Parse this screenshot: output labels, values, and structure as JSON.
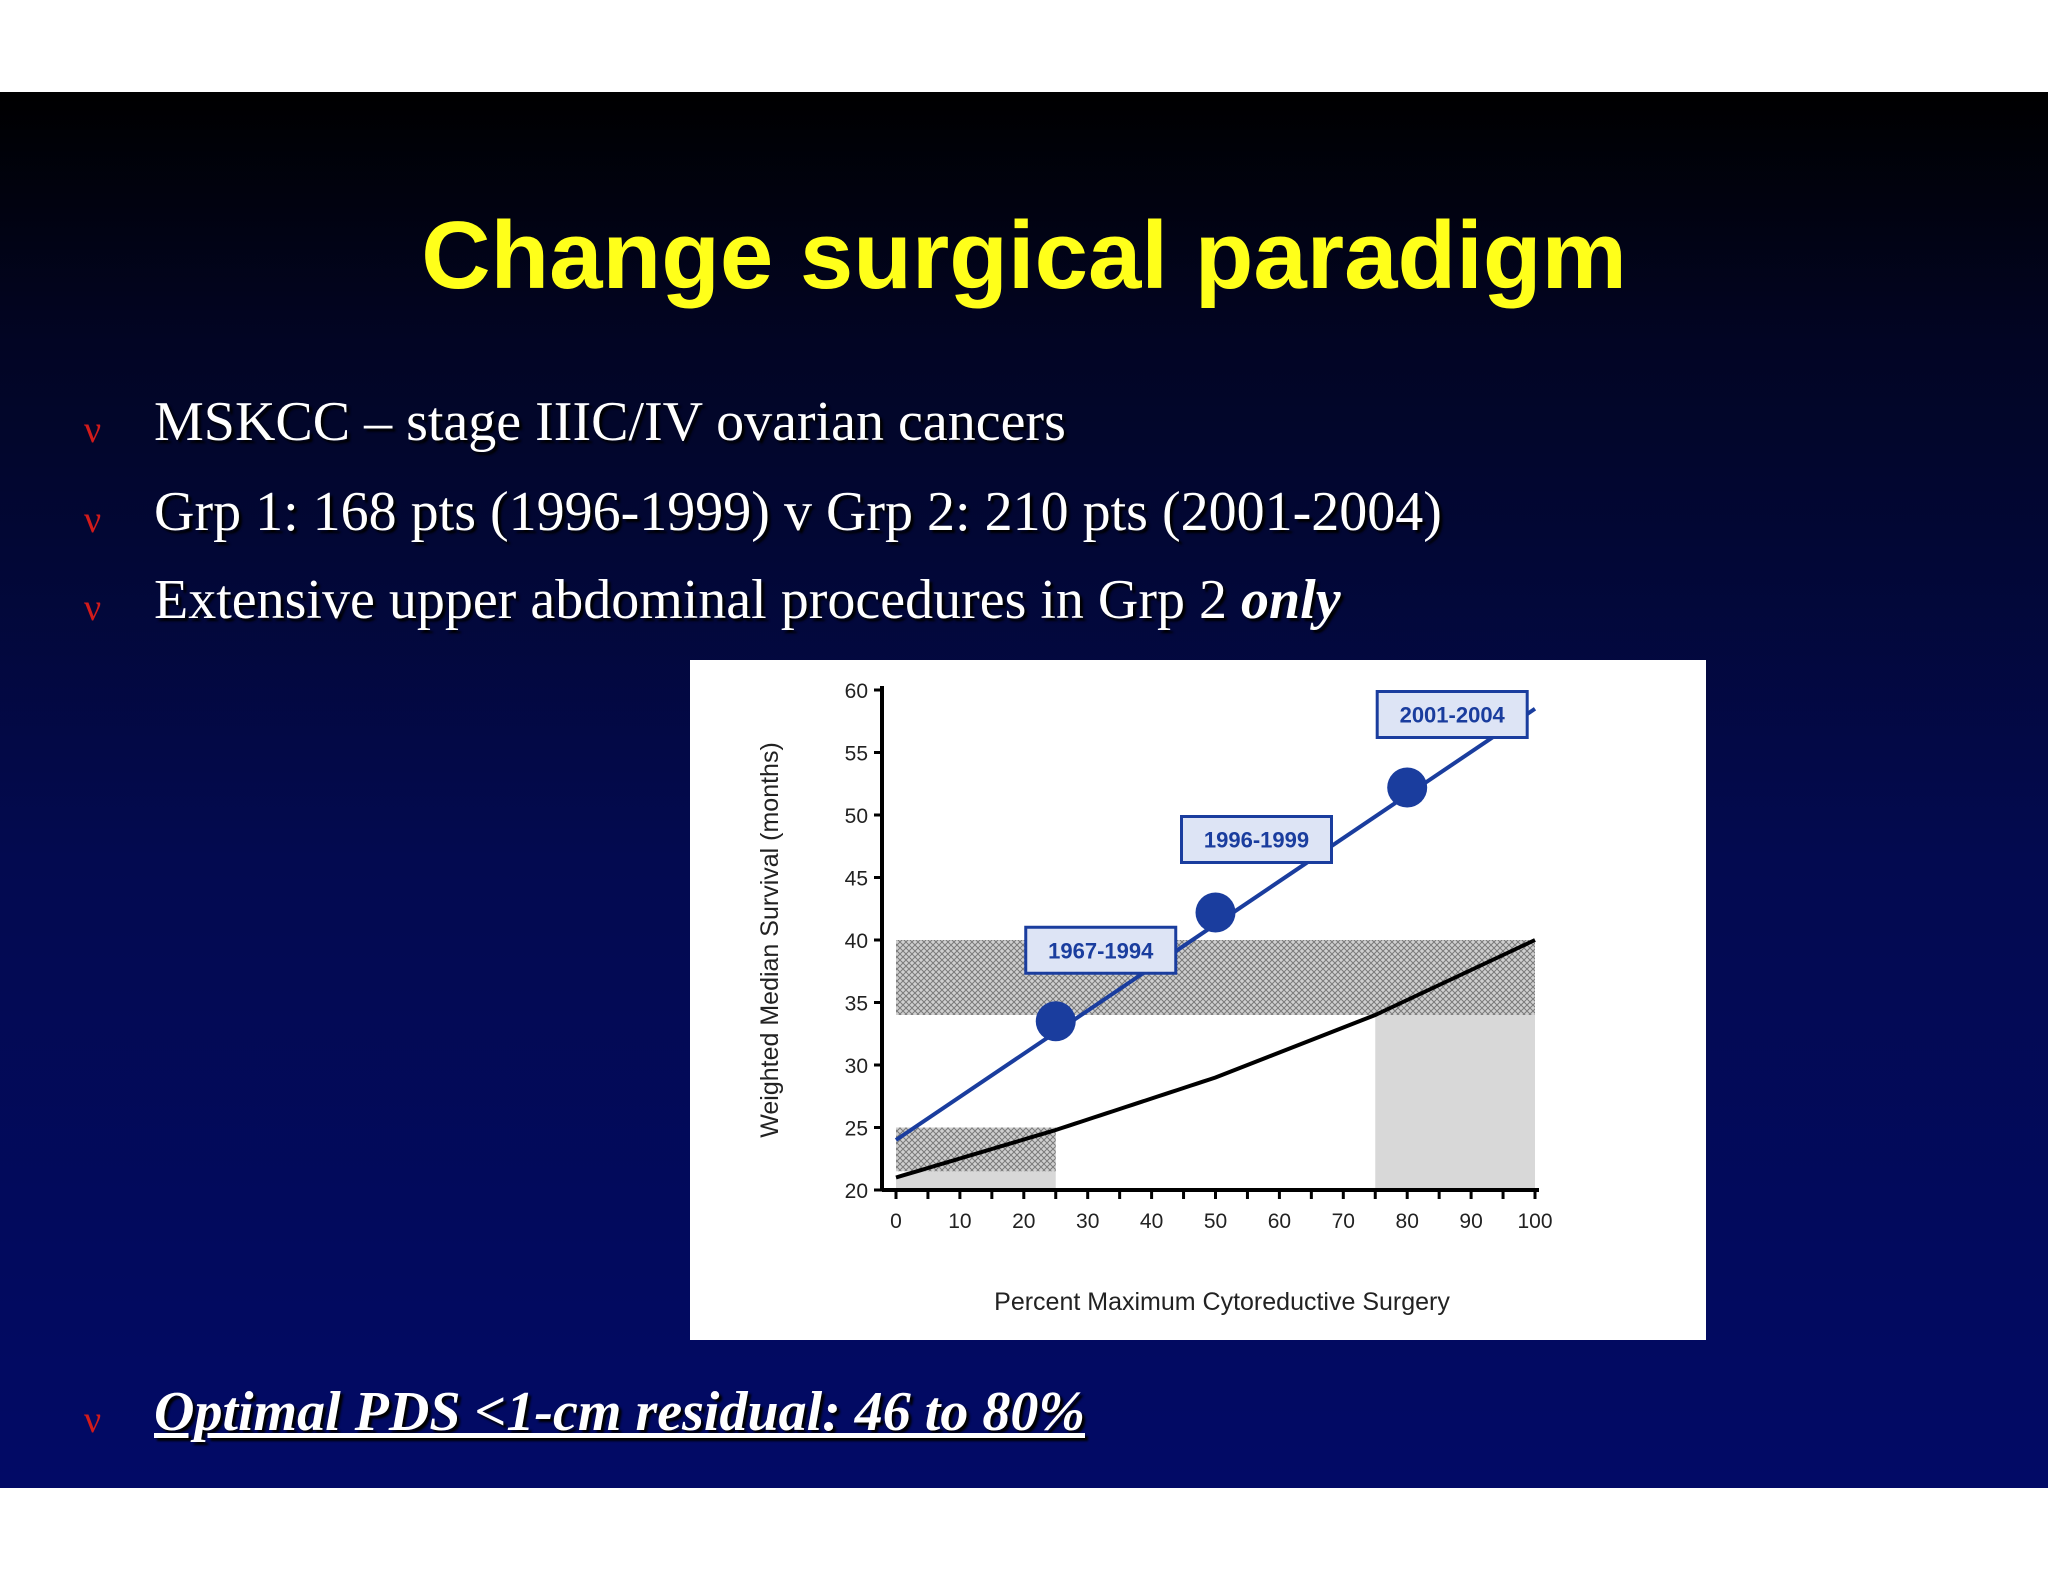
{
  "title": "Change surgical paradigm",
  "bullets": [
    {
      "text": "MSKCC – stage IIIC/IV ovarian cancers"
    },
    {
      "text": "Grp 1: 168 pts (1996-1999) v Grp 2: 210 pts (2001-2004)"
    },
    {
      "text": "Extensive upper abdominal procedures in Grp 2 ",
      "emphasis": "only"
    },
    {
      "text": "Optimal PDS <1-cm residual: 46 to 80%"
    }
  ],
  "bullet_marker": "ν",
  "colors": {
    "title": "#ffff1a",
    "bullet_marker": "#d21b1b",
    "series_blue": "#1a3d9e",
    "label_box_fill": "#dde4f5",
    "shade_grey": "#d8d8d8",
    "hatch": "#8a8a8a"
  },
  "chart_data": {
    "type": "line",
    "xlabel": "Percent Maximum Cytoreductive Surgery",
    "ylabel": "Weighted Median Survival (months)",
    "xlim": [
      0,
      100
    ],
    "ylim": [
      20,
      60
    ],
    "x_ticks": [
      0,
      10,
      20,
      30,
      40,
      50,
      60,
      70,
      80,
      90,
      100
    ],
    "x_tick_labels": [
      "0",
      "10",
      "20",
      "30",
      "40",
      "50",
      "60",
      "70",
      "80",
      "90",
      "100"
    ],
    "y_ticks": [
      20,
      25,
      30,
      35,
      40,
      45,
      50,
      55,
      60
    ],
    "y_tick_labels": [
      "20",
      "25",
      "30",
      "35",
      "40",
      "45",
      "50",
      "55",
      "60"
    ],
    "series": [
      {
        "style": "blue-line",
        "x": [
          0,
          100
        ],
        "y": [
          24,
          58.5
        ]
      },
      {
        "style": "black-curve",
        "x": [
          0,
          25,
          50,
          75,
          100
        ],
        "y": [
          21,
          24.8,
          29,
          34,
          40
        ]
      }
    ],
    "points": [
      {
        "label": "1967-1994",
        "x": 25,
        "y": 33.5
      },
      {
        "label": "1996-1999",
        "x": 50,
        "y": 42.2
      },
      {
        "label": "2001-2004",
        "x": 80,
        "y": 52.2
      }
    ],
    "hatched_bands": [
      {
        "x": [
          0,
          25
        ],
        "y": [
          21.5,
          25
        ]
      },
      {
        "x": [
          0,
          100
        ],
        "y": [
          34,
          40
        ]
      }
    ],
    "grey_regions": [
      {
        "x": [
          0,
          25
        ],
        "y_to_curve": true
      },
      {
        "x": [
          75,
          100
        ],
        "y_to_curve": true
      }
    ],
    "grid": false
  }
}
